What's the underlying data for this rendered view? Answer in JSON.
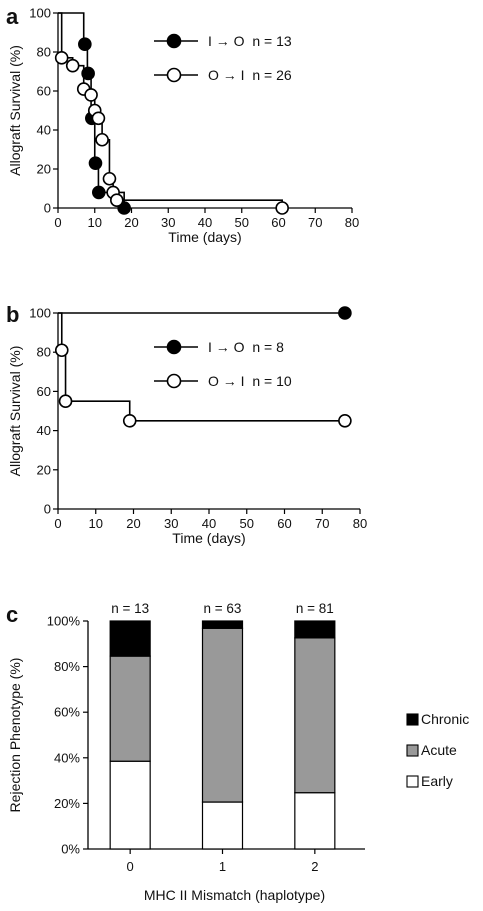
{
  "chart_data": [
    {
      "panel": "a",
      "type": "line",
      "xlabel": "Time (days)",
      "ylabel": "Allograft Survival (%)",
      "xlim": [
        0,
        80
      ],
      "ylim": [
        0,
        100
      ],
      "xticks": [
        0,
        10,
        20,
        30,
        40,
        50,
        60,
        70,
        80
      ],
      "yticks": [
        0,
        20,
        40,
        60,
        80,
        100
      ],
      "legend_position": "top-right",
      "series": [
        {
          "name": "I → O  n = 13",
          "marker": "filled-circle",
          "color": "#000000",
          "step_x": [
            0,
            7,
            8,
            9,
            10,
            11,
            18
          ],
          "step_y": [
            100,
            84,
            69,
            46,
            23,
            8,
            0
          ],
          "points": [
            {
              "x": 7.3,
              "y": 84
            },
            {
              "x": 8.2,
              "y": 69
            },
            {
              "x": 9.2,
              "y": 46
            },
            {
              "x": 10.2,
              "y": 23
            },
            {
              "x": 11.1,
              "y": 8
            },
            {
              "x": 18,
              "y": 0
            }
          ]
        },
        {
          "name": "O → I  n = 26",
          "marker": "open-circle",
          "color": "#000000",
          "step_x": [
            0,
            1,
            4,
            7,
            9,
            10,
            11,
            12,
            14,
            15,
            16,
            17,
            61
          ],
          "step_y": [
            100,
            77,
            73,
            61,
            58,
            50,
            46,
            35,
            15,
            8,
            4,
            4,
            0
          ],
          "points": [
            {
              "x": 1,
              "y": 77
            },
            {
              "x": 4,
              "y": 73
            },
            {
              "x": 7,
              "y": 61
            },
            {
              "x": 9,
              "y": 58
            },
            {
              "x": 10,
              "y": 50
            },
            {
              "x": 11,
              "y": 46
            },
            {
              "x": 12,
              "y": 35
            },
            {
              "x": 14,
              "y": 15
            },
            {
              "x": 15,
              "y": 8
            },
            {
              "x": 16,
              "y": 4
            },
            {
              "x": 61,
              "y": 0
            }
          ]
        }
      ]
    },
    {
      "panel": "b",
      "type": "line",
      "xlabel": "Time (days)",
      "ylabel": "Allograft Survival (%)",
      "xlim": [
        0,
        80
      ],
      "ylim": [
        0,
        100
      ],
      "xticks": [
        0,
        10,
        20,
        30,
        40,
        50,
        60,
        70,
        80
      ],
      "yticks": [
        0,
        20,
        40,
        60,
        80,
        100
      ],
      "legend_position": "top-right",
      "series": [
        {
          "name": "I → O  n = 8",
          "marker": "filled-circle",
          "color": "#000000",
          "step_x": [
            0,
            76
          ],
          "step_y": [
            100,
            100
          ],
          "points": [
            {
              "x": 76,
              "y": 100
            }
          ]
        },
        {
          "name": "O → I  n = 10",
          "marker": "open-circle",
          "color": "#000000",
          "step_x": [
            0,
            1,
            2,
            19,
            76
          ],
          "step_y": [
            100,
            81,
            55,
            45,
            45
          ],
          "points": [
            {
              "x": 1,
              "y": 81
            },
            {
              "x": 2,
              "y": 55
            },
            {
              "x": 19,
              "y": 45
            },
            {
              "x": 76,
              "y": 45
            }
          ]
        }
      ]
    },
    {
      "panel": "c",
      "type": "bar",
      "stacked": true,
      "xlabel": "MHC II Mismatch (haplotype)",
      "ylabel": "Rejection Phenotype (%)",
      "ylim": [
        0,
        100
      ],
      "yticks": [
        "0%",
        "20%",
        "40%",
        "60%",
        "80%",
        "100%"
      ],
      "categories": [
        "0",
        "1",
        "2"
      ],
      "counts": [
        "n = 13",
        "n = 63",
        "n = 81"
      ],
      "legend_position": "right",
      "series": [
        {
          "name": "Early",
          "color": "#ffffff",
          "values": [
            38.5,
            20.6,
            24.7
          ]
        },
        {
          "name": "Acute",
          "color": "#999999",
          "values": [
            46.1,
            76.2,
            67.9
          ]
        },
        {
          "name": "Chronic",
          "color": "#000000",
          "values": [
            15.4,
            3.2,
            7.4
          ]
        }
      ]
    }
  ]
}
